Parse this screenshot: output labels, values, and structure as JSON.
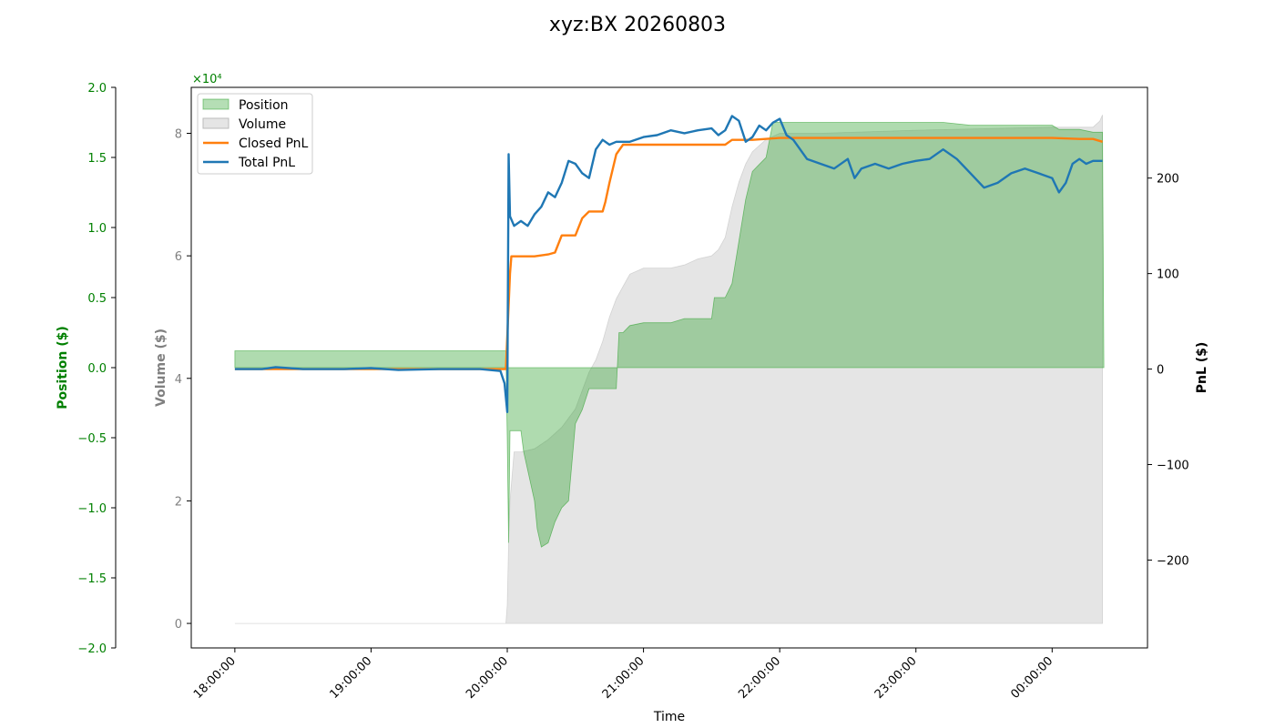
{
  "colors": {
    "position": "#008000",
    "position_fill": "#2ca02c",
    "volume": "#808080",
    "volume_fill": "#d3d3d3",
    "closed_pnl": "#ff7f0e",
    "total_pnl": "#1f77b4",
    "axis": "#000000"
  },
  "chart_data": {
    "type": "area",
    "title": "xyz:BX 20260803",
    "xlabel": "Time",
    "x_ticks": [
      "18:00:00",
      "19:00:00",
      "20:00:00",
      "21:00:00",
      "22:00:00",
      "23:00:00",
      "00:00:00"
    ],
    "x_range_hours": [
      -0.32,
      6.7
    ],
    "axes": {
      "position": {
        "label": "Position ($)",
        "range": [
          -2.0,
          2.0
        ],
        "ticks": [
          "2.0",
          "1.5",
          "1.0",
          "0.5",
          "0.0",
          "−0.5",
          "−1.0",
          "−1.5",
          "−2.0"
        ],
        "multiplier": "×10⁴"
      },
      "volume": {
        "label": "Volume ($)",
        "range": [
          -0.4,
          8.75
        ],
        "ticks": [
          "8",
          "6",
          "4",
          "2",
          "0"
        ],
        "multiplier": "×10⁴"
      },
      "pnl": {
        "label": "PnL ($)",
        "range": [
          -292,
          295
        ],
        "ticks": [
          "200",
          "100",
          "0",
          "−100",
          "−200"
        ]
      }
    },
    "legend": {
      "placement": "upper-left",
      "entries": [
        "Position",
        "Volume",
        "Closed PnL",
        "Total PnL"
      ]
    },
    "grid": false,
    "series": [
      {
        "name": "Position",
        "axis": "position",
        "kind": "area",
        "unit": "x1e4",
        "points": [
          [
            0,
            0.12
          ],
          [
            1.99,
            0.12
          ],
          [
            2.0,
            -0.5
          ],
          [
            2.01,
            -1.25
          ],
          [
            2.02,
            -0.45
          ],
          [
            2.05,
            -0.45
          ],
          [
            2.1,
            -0.45
          ],
          [
            2.12,
            -0.6
          ],
          [
            2.2,
            -0.95
          ],
          [
            2.22,
            -1.15
          ],
          [
            2.25,
            -1.28
          ],
          [
            2.3,
            -1.25
          ],
          [
            2.35,
            -1.1
          ],
          [
            2.4,
            -1.0
          ],
          [
            2.45,
            -0.95
          ],
          [
            2.5,
            -0.4
          ],
          [
            2.55,
            -0.3
          ],
          [
            2.6,
            -0.15
          ],
          [
            2.65,
            -0.15
          ],
          [
            2.7,
            -0.15
          ],
          [
            2.75,
            -0.15
          ],
          [
            2.8,
            -0.15
          ],
          [
            2.82,
            0.25
          ],
          [
            2.85,
            0.25
          ],
          [
            2.9,
            0.3
          ],
          [
            3.0,
            0.32
          ],
          [
            3.2,
            0.32
          ],
          [
            3.3,
            0.35
          ],
          [
            3.5,
            0.35
          ],
          [
            3.52,
            0.5
          ],
          [
            3.6,
            0.5
          ],
          [
            3.65,
            0.6
          ],
          [
            3.7,
            0.9
          ],
          [
            3.75,
            1.2
          ],
          [
            3.8,
            1.4
          ],
          [
            3.85,
            1.45
          ],
          [
            3.9,
            1.5
          ],
          [
            3.95,
            1.75
          ],
          [
            4.05,
            1.75
          ],
          [
            4.2,
            1.75
          ],
          [
            4.4,
            1.75
          ],
          [
            4.6,
            1.75
          ],
          [
            4.8,
            1.75
          ],
          [
            5.0,
            1.75
          ],
          [
            5.2,
            1.75
          ],
          [
            5.4,
            1.73
          ],
          [
            5.6,
            1.73
          ],
          [
            5.8,
            1.73
          ],
          [
            6.0,
            1.73
          ],
          [
            6.05,
            1.7
          ],
          [
            6.2,
            1.7
          ],
          [
            6.3,
            1.68
          ],
          [
            6.37,
            1.68
          ],
          [
            6.38,
            0.0
          ]
        ]
      },
      {
        "name": "Volume",
        "axis": "volume",
        "kind": "area",
        "unit": "x1e4",
        "points": [
          [
            0,
            0
          ],
          [
            1.99,
            0
          ],
          [
            2.0,
            0.3
          ],
          [
            2.01,
            1.3
          ],
          [
            2.02,
            2.0
          ],
          [
            2.05,
            2.8
          ],
          [
            2.1,
            2.8
          ],
          [
            2.2,
            2.85
          ],
          [
            2.3,
            3.0
          ],
          [
            2.4,
            3.2
          ],
          [
            2.5,
            3.5
          ],
          [
            2.55,
            3.8
          ],
          [
            2.6,
            4.1
          ],
          [
            2.65,
            4.3
          ],
          [
            2.7,
            4.6
          ],
          [
            2.75,
            5.0
          ],
          [
            2.8,
            5.3
          ],
          [
            2.85,
            5.5
          ],
          [
            2.9,
            5.7
          ],
          [
            3.0,
            5.8
          ],
          [
            3.1,
            5.8
          ],
          [
            3.2,
            5.8
          ],
          [
            3.3,
            5.85
          ],
          [
            3.4,
            5.95
          ],
          [
            3.5,
            6.0
          ],
          [
            3.55,
            6.1
          ],
          [
            3.6,
            6.3
          ],
          [
            3.65,
            6.8
          ],
          [
            3.7,
            7.2
          ],
          [
            3.75,
            7.5
          ],
          [
            3.8,
            7.7
          ],
          [
            3.9,
            7.9
          ],
          [
            4.0,
            8.0
          ],
          [
            4.3,
            8.0
          ],
          [
            5.0,
            8.05
          ],
          [
            6.0,
            8.1
          ],
          [
            6.3,
            8.1
          ],
          [
            6.35,
            8.2
          ],
          [
            6.37,
            8.3
          ]
        ]
      },
      {
        "name": "Closed PnL",
        "axis": "pnl",
        "kind": "line",
        "points": [
          [
            0,
            0
          ],
          [
            1.99,
            0
          ],
          [
            2.02,
            100
          ],
          [
            2.03,
            118
          ],
          [
            2.1,
            118
          ],
          [
            2.2,
            118
          ],
          [
            2.3,
            120
          ],
          [
            2.35,
            122
          ],
          [
            2.4,
            140
          ],
          [
            2.5,
            140
          ],
          [
            2.55,
            158
          ],
          [
            2.6,
            165
          ],
          [
            2.7,
            165
          ],
          [
            2.72,
            175
          ],
          [
            2.75,
            195
          ],
          [
            2.8,
            225
          ],
          [
            2.85,
            235
          ],
          [
            3.0,
            235
          ],
          [
            3.2,
            235
          ],
          [
            3.4,
            235
          ],
          [
            3.6,
            235
          ],
          [
            3.65,
            240
          ],
          [
            3.8,
            240
          ],
          [
            4.0,
            242
          ],
          [
            4.2,
            242
          ],
          [
            4.5,
            242
          ],
          [
            5.0,
            242
          ],
          [
            5.5,
            242
          ],
          [
            6.0,
            242
          ],
          [
            6.2,
            241
          ],
          [
            6.3,
            241
          ],
          [
            6.37,
            238
          ]
        ]
      },
      {
        "name": "Total PnL",
        "axis": "pnl",
        "kind": "line",
        "points": [
          [
            0,
            0
          ],
          [
            0.2,
            0
          ],
          [
            0.3,
            2
          ],
          [
            0.5,
            0
          ],
          [
            0.8,
            0
          ],
          [
            1.0,
            1
          ],
          [
            1.2,
            -1
          ],
          [
            1.5,
            0
          ],
          [
            1.8,
            0
          ],
          [
            1.95,
            -2
          ],
          [
            1.98,
            -15
          ],
          [
            2.0,
            -45
          ],
          [
            2.01,
            225
          ],
          [
            2.02,
            160
          ],
          [
            2.05,
            150
          ],
          [
            2.1,
            155
          ],
          [
            2.15,
            150
          ],
          [
            2.2,
            162
          ],
          [
            2.25,
            170
          ],
          [
            2.3,
            185
          ],
          [
            2.35,
            180
          ],
          [
            2.4,
            195
          ],
          [
            2.45,
            218
          ],
          [
            2.5,
            215
          ],
          [
            2.55,
            205
          ],
          [
            2.6,
            200
          ],
          [
            2.65,
            230
          ],
          [
            2.7,
            240
          ],
          [
            2.75,
            235
          ],
          [
            2.8,
            238
          ],
          [
            2.9,
            238
          ],
          [
            3.0,
            243
          ],
          [
            3.1,
            245
          ],
          [
            3.2,
            250
          ],
          [
            3.3,
            247
          ],
          [
            3.4,
            250
          ],
          [
            3.5,
            252
          ],
          [
            3.55,
            245
          ],
          [
            3.6,
            250
          ],
          [
            3.65,
            265
          ],
          [
            3.7,
            260
          ],
          [
            3.75,
            238
          ],
          [
            3.8,
            243
          ],
          [
            3.85,
            255
          ],
          [
            3.9,
            250
          ],
          [
            3.95,
            258
          ],
          [
            4.0,
            262
          ],
          [
            4.05,
            245
          ],
          [
            4.1,
            240
          ],
          [
            4.2,
            220
          ],
          [
            4.3,
            215
          ],
          [
            4.4,
            210
          ],
          [
            4.5,
            220
          ],
          [
            4.55,
            200
          ],
          [
            4.6,
            210
          ],
          [
            4.7,
            215
          ],
          [
            4.8,
            210
          ],
          [
            4.9,
            215
          ],
          [
            5.0,
            218
          ],
          [
            5.1,
            220
          ],
          [
            5.2,
            230
          ],
          [
            5.3,
            220
          ],
          [
            5.4,
            205
          ],
          [
            5.5,
            190
          ],
          [
            5.6,
            195
          ],
          [
            5.7,
            205
          ],
          [
            5.8,
            210
          ],
          [
            5.9,
            205
          ],
          [
            6.0,
            200
          ],
          [
            6.05,
            185
          ],
          [
            6.1,
            195
          ],
          [
            6.15,
            215
          ],
          [
            6.2,
            220
          ],
          [
            6.25,
            215
          ],
          [
            6.3,
            218
          ],
          [
            6.37,
            218
          ]
        ]
      }
    ]
  }
}
